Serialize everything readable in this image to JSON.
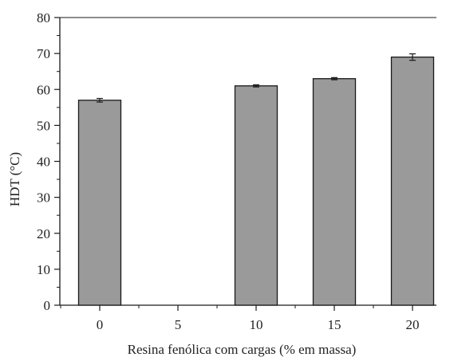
{
  "chart_data": {
    "type": "bar",
    "xlabel": "Resina fenólica com cargas (% em massa)",
    "ylabel": "HDT (°C)",
    "categories": [
      "0",
      "5",
      "10",
      "15",
      "20"
    ],
    "values": [
      57,
      null,
      61,
      63,
      69
    ],
    "errors": [
      0.5,
      null,
      0.3,
      0.3,
      0.9
    ],
    "ylim": [
      0,
      80
    ],
    "yticks": [
      "0",
      "10",
      "20",
      "30",
      "40",
      "50",
      "60",
      "70",
      "80"
    ],
    "grid": false,
    "legend": "none",
    "colors": {
      "bar_fill": "#9a9a9a",
      "bar_stroke": "#1a1a1a",
      "axis": "#1a1a1a"
    }
  }
}
